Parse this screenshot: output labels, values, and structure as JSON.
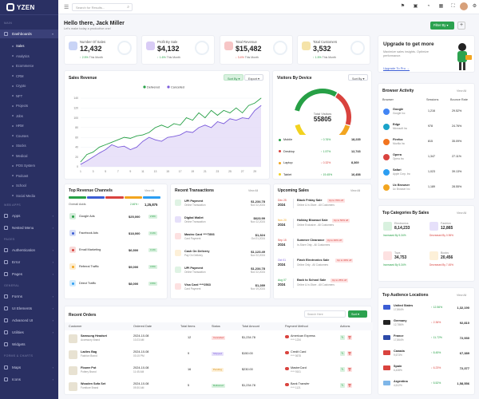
{
  "app": {
    "logo": "YZEN"
  },
  "sidebar": {
    "sections": [
      "MAIN",
      "WEB APPS",
      "PAGES",
      "GENERAL",
      "FORMS & CHARTS"
    ],
    "dashboards": "Dashboards",
    "subitems": [
      "Sales",
      "Analytics",
      "Ecommerce",
      "CRM",
      "Crypto",
      "NFT",
      "Projects",
      "Jobs",
      "HRM",
      "Courses",
      "Stocks",
      "Medical",
      "POS System",
      "Podcast",
      "School",
      "Social Media"
    ],
    "apps": "Apps",
    "nested": "Nested Menu",
    "authentication": "Authentication",
    "error": "Error",
    "pages": "Pages",
    "forms": "Forms",
    "ui_elements": "UI Elements",
    "advanced_ui": "Advanced UI",
    "utilities": "Utilities",
    "widgets": "Widgets",
    "maps": "Maps",
    "icons": "Icons"
  },
  "top": {
    "search_placeholder": "Search for Results..."
  },
  "header": {
    "title": "Hello there, Jack Miller",
    "subtitle": "Let's make today a productive one!",
    "filter": "Filter By"
  },
  "stats": [
    {
      "label": "Number Of Sales",
      "value": "12,432",
      "change": "↑ 2.5%",
      "note": "This Month",
      "dir": "up",
      "color": "#c9d4f6"
    },
    {
      "label": "Profit By Sale",
      "value": "$4,132",
      "change": "↑ 1.6%",
      "note": "This Month",
      "dir": "up",
      "color": "#d9ccf6"
    },
    {
      "label": "Total Revenue",
      "value": "$15,482",
      "change": "↓ 3.4%",
      "note": "This Month",
      "dir": "dn",
      "color": "#f7c6c6"
    },
    {
      "label": "Total Customers",
      "value": "3,532",
      "change": "↑ 1.5%",
      "note": "This Month",
      "dir": "up",
      "color": "#f5e3a9"
    }
  ],
  "upgrade": {
    "title": "Upgrade to get more",
    "text": "Maximize sales insights. Optimize performance.",
    "link": "Upgrade To Pro →"
  },
  "chart_data": [
    {
      "type": "line",
      "title": "Sales Revenue",
      "x": [
        1,
        2,
        3,
        4,
        5,
        6,
        7,
        8,
        9,
        10,
        11,
        12,
        13,
        14,
        15,
        16,
        17,
        18,
        19,
        20,
        21,
        22,
        23,
        24,
        25,
        26,
        27,
        28,
        29,
        30
      ],
      "x_ticks": [
        1,
        3,
        5,
        7,
        9,
        11,
        13,
        15,
        17,
        19,
        21,
        23,
        25,
        27,
        29
      ],
      "ylim": [
        0,
        140
      ],
      "y_ticks": [
        0,
        20,
        40,
        60,
        80,
        100,
        120,
        140
      ],
      "legend_position": "top",
      "series": [
        {
          "name": "Delivered",
          "color": "#27a046",
          "values": [
            10,
            25,
            30,
            40,
            45,
            50,
            55,
            60,
            58,
            63,
            65,
            70,
            80,
            85,
            80,
            88,
            85,
            100,
            95,
            110,
            100,
            115,
            105,
            115,
            110,
            120,
            110,
            125,
            130,
            140
          ]
        },
        {
          "name": "Cancelled",
          "color": "#7c5cdb",
          "values": [
            5,
            12,
            20,
            28,
            35,
            45,
            40,
            42,
            35,
            40,
            52,
            60,
            55,
            52,
            60,
            62,
            65,
            72,
            70,
            80,
            85,
            80,
            92,
            88,
            98,
            95,
            100,
            98,
            115,
            125
          ]
        }
      ],
      "buttons": {
        "sort": "Sort By",
        "export": "Export"
      }
    },
    {
      "type": "pie",
      "title": "Visitors By Device",
      "center_label": "Total Visitors",
      "center_value": "55805",
      "series": [
        {
          "name": "Mobile",
          "change": "↑ 0.76%",
          "dir": "up",
          "value": 18235,
          "value_text": "18,235",
          "color": "#27a046"
        },
        {
          "name": "Desktop",
          "change": "↑ 1.57%",
          "dir": "up",
          "value": 12743,
          "value_text": "12,743",
          "color": "#d9433e"
        },
        {
          "name": "Laptop",
          "change": "↓ 0.32%",
          "dir": "dn",
          "value": 8369,
          "value_text": "8,369",
          "color": "#f2a51f"
        },
        {
          "name": "Tablet",
          "change": "↑ 19.45%",
          "dir": "up",
          "value": 16458,
          "value_text": "16,458",
          "color": "#f2d21f"
        }
      ],
      "sort": "Sort By"
    }
  ],
  "browser": {
    "title": "Browser Activity",
    "view": "View All",
    "cols": [
      "Browser",
      "Sessions",
      "Bounce Rate"
    ],
    "rows": [
      {
        "name": "Google",
        "org": "Google Inc",
        "sessions": "1,216",
        "rate": "29.52%",
        "color": "#4285f4"
      },
      {
        "name": "Edge",
        "org": "Microsoft Inc",
        "sessions": "978",
        "rate": "24.76%",
        "color": "#1aa3c9"
      },
      {
        "name": "Firefox",
        "org": "Mozilla Inc",
        "sessions": "815",
        "rate": "35.09%",
        "color": "#f2741f"
      },
      {
        "name": "Opera",
        "org": "Opera Inc",
        "sessions": "1,347",
        "rate": "27.11%",
        "color": "#d9433e"
      },
      {
        "name": "Safari",
        "org": "Apple Corp, Inc",
        "sessions": "1,023",
        "rate": "39.13%",
        "color": "#2c9ef2"
      },
      {
        "name": "Uc Browser",
        "org": "Uc Browser Inc",
        "sessions": "1,189",
        "rate": "28.55%",
        "color": "#f2a51f"
      }
    ]
  },
  "revenue_channels": {
    "title": "Top Revenue Channels",
    "view": "View All",
    "overall": "Overall Adds",
    "overall_change": "2.46% ↑",
    "overall_value": "1,25,875",
    "rows": [
      {
        "name": "Google Ads",
        "value": "$25,000",
        "pct": "2.9%",
        "color": "#27a046"
      },
      {
        "name": "Facebook Ads",
        "value": "$18,000",
        "pct": "3.1%",
        "color": "#3b5dd4"
      },
      {
        "name": "Email Marketing",
        "value": "$6,500",
        "pct": "3.1%",
        "color": "#d9433e"
      },
      {
        "name": "Referral Traffic",
        "value": "$9,000",
        "pct": "3.5%",
        "color": "#f2a51f"
      },
      {
        "name": "Direct Traffic",
        "value": "$8,000",
        "pct": "3.5%",
        "color": "#2c9ef2"
      }
    ]
  },
  "transactions": {
    "title": "Recent Transactions",
    "view": "View All",
    "rows": [
      {
        "name": "UPI Payment",
        "desc": "Online Transaction",
        "amount": "$1,234.78",
        "date": "Nov 22,2024",
        "color": "#dff3e4"
      },
      {
        "name": "Digital Wallet",
        "desc": "Online Transaction",
        "amount": "$623.99",
        "date": "Nov 22,2024",
        "color": "#e6e0fa"
      },
      {
        "name": "Mastro Card ****7893",
        "desc": "Card Payment",
        "amount": "$1,324",
        "date": "Oct 21,2024",
        "color": "#fde1e1"
      },
      {
        "name": "Cash On Delivery",
        "desc": "Pay On Delivery",
        "amount": "$1,123.49",
        "date": "Nov 22,2024",
        "color": "#fdf0d8"
      },
      {
        "name": "UPI Payment",
        "desc": "Online Transaction",
        "amount": "$1,234.78",
        "date": "Nov 22,2024",
        "color": "#dff3e4"
      },
      {
        "name": "Visa Card ****2563",
        "desc": "Card Payment",
        "amount": "$1,289",
        "date": "Nov 19,2024",
        "color": "#fde1e1"
      }
    ]
  },
  "sales": {
    "title": "Upcoming Sales",
    "view": "View All",
    "rows": [
      {
        "month": "Dec 25",
        "year": "2024",
        "name": "Black Friday Sale",
        "tag": "Up to 70% off",
        "sub": "Online & In-Store - All Customers",
        "color": "#d9433e"
      },
      {
        "month": "Nov 20",
        "year": "2024",
        "name": "Holiday Blowout Sale",
        "tag": "Up to 50% off",
        "sub": "Online Exclusive - All Customers",
        "color": "#f2a51f"
      },
      {
        "month": "Sep 15",
        "year": "2024",
        "name": "Summer Clearance",
        "tag": "Up to 40% off",
        "sub": "In-Store Only - All Customers",
        "color": "#d9433e"
      },
      {
        "month": "Oct 01",
        "year": "2024",
        "name": "Flash Electronics Sale",
        "tag": "Up to 30% off",
        "sub": "Online Only - All Customers",
        "color": "#7c5cdb"
      },
      {
        "month": "Aug 07",
        "year": "2024",
        "name": "Back to School Sale",
        "tag": "Up to 25% off",
        "sub": "Online & In-Store - All Customers",
        "color": "#27a046"
      }
    ]
  },
  "categories": {
    "title": "Top Categories By Sales",
    "view": "View All",
    "items": [
      {
        "name": "Electronics",
        "value": "8,14,233",
        "change": "Increased By 5.34%",
        "dir": "up",
        "color": "#d9f1df"
      },
      {
        "name": "Fashion",
        "value": "12,865",
        "change": "Decreased By 0.96%",
        "dir": "dn",
        "color": "#e6e0fa"
      },
      {
        "name": "Toys",
        "value": "34,753",
        "change": "Increased By 5.34%",
        "dir": "up",
        "color": "#fde1e1"
      },
      {
        "name": "Books",
        "value": "20,456",
        "change": "Decreased By 7.45%",
        "dir": "dn",
        "color": "#fdf0d8"
      }
    ]
  },
  "orders": {
    "title": "Recent Orders",
    "search": "Search Here",
    "button": "Sort",
    "cols": [
      "Customer",
      "Ordered Date",
      "Total Items",
      "Status",
      "Total Amount",
      "Payment Method",
      "Actions"
    ],
    "rows": [
      {
        "product": "Samsung Headset",
        "brand": "Accessory Brand",
        "date": "2024-10-08",
        "date2": "10:23 AM",
        "items": "12",
        "status": "Cancelled",
        "st_bg": "#fde1e1",
        "st_fg": "#d9433e",
        "amount": "$1,234.78",
        "pay": "American Express",
        "pay2": "**** 1234"
      },
      {
        "product": "Ladies Bag",
        "brand": "Fashion Brand",
        "date": "2024-10-08",
        "date2": "03:15 PM",
        "items": "9",
        "status": "Shipped",
        "st_bg": "#e6e0fa",
        "st_fg": "#7c5cdb",
        "amount": "$150.00",
        "pay": "Credit Card",
        "pay2": "**** 5678"
      },
      {
        "product": "Flower Pot",
        "brand": "Pottery Brand",
        "date": "2024-10-08",
        "date2": "11:45 AM",
        "items": "16",
        "status": "Pending",
        "st_bg": "#fdf0d8",
        "st_fg": "#d48a10",
        "amount": "$230.00",
        "pay": "MasterCard",
        "pay2": "**** 9101"
      },
      {
        "product": "Wooden Sofa Set",
        "brand": "Furniture Brand",
        "date": "2024-10-08",
        "date2": "09:30 AM",
        "items": "5",
        "status": "Delivered",
        "st_bg": "#d9f1df",
        "st_fg": "#27a046",
        "amount": "$1,234.78",
        "pay": "Bank Transfer",
        "pay2": "**** 1121"
      }
    ]
  },
  "audience": {
    "title": "Top Audience Locations",
    "view": "View All",
    "rows": [
      {
        "country": "United States",
        "pct": "17,864%",
        "change": "↑ 12.56%",
        "dir": "up",
        "value": "1,32,190",
        "flag": "#3b5dd4"
      },
      {
        "country": "Germany",
        "pct": "12,786%",
        "change": "↓ 2.36%",
        "dir": "dn",
        "value": "92,810",
        "flag": "#222222"
      },
      {
        "country": "France",
        "pct": "17,864%",
        "change": "↑ 11.72%",
        "dir": "up",
        "value": "72,930",
        "flag": "#2c4aa8"
      },
      {
        "country": "Canada",
        "pct": "9,673%",
        "change": "↑ 8.45%",
        "dir": "up",
        "value": "67,389",
        "flag": "#d9433e"
      },
      {
        "country": "Spain",
        "pct": "6,438%",
        "change": "↓ 6.23%",
        "dir": "dn",
        "value": "72,377",
        "flag": "#d9433e"
      },
      {
        "country": "Argentina",
        "pct": "4,612%",
        "change": "↑ 5.52%",
        "dir": "up",
        "value": "1,58,556",
        "flag": "#7fb6e8"
      }
    ]
  }
}
